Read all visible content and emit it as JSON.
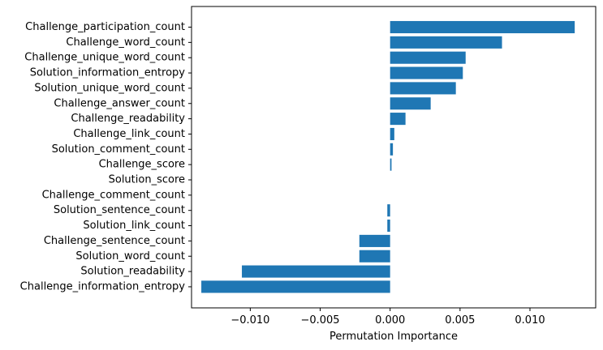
{
  "chart_data": {
    "type": "bar",
    "orientation": "horizontal",
    "categories": [
      "Challenge_participation_count",
      "Challenge_word_count",
      "Challenge_unique_word_count",
      "Solution_information_entropy",
      "Solution_unique_word_count",
      "Challenge_answer_count",
      "Challenge_readability",
      "Challenge_link_count",
      "Solution_comment_count",
      "Challenge_score",
      "Solution_score",
      "Challenge_comment_count",
      "Solution_sentence_count",
      "Solution_link_count",
      "Challenge_sentence_count",
      "Solution_word_count",
      "Solution_readability",
      "Challenge_information_entropy"
    ],
    "values": [
      0.0132,
      0.008,
      0.0054,
      0.0052,
      0.0047,
      0.0029,
      0.0011,
      0.0003,
      0.0002,
      0.0001,
      0.0,
      0.0,
      -0.0002,
      -0.0002,
      -0.0022,
      -0.0022,
      -0.0106,
      -0.0135
    ],
    "xlabel": "Permutation Importance",
    "ylabel": "",
    "title": "",
    "xlim": [
      -0.0142,
      0.0147
    ],
    "xticks": [
      -0.01,
      -0.005,
      0.0,
      0.005,
      0.01
    ],
    "xtick_labels": [
      "−0.010",
      "−0.005",
      "0.000",
      "0.005",
      "0.010"
    ],
    "bar_color": "#1f77b4",
    "grid": false,
    "legend": "none"
  }
}
